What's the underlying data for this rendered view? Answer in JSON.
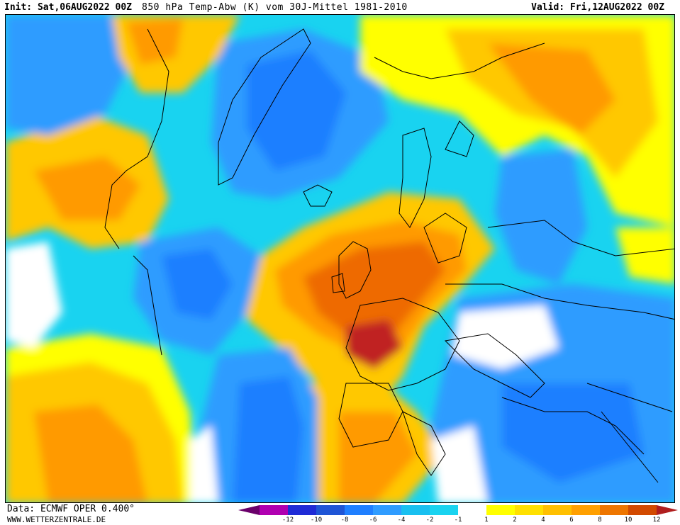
{
  "header": {
    "init": "Init: Sat,06AUG2022 00Z",
    "title": "850 hPa Temp-Abw (K) vom 30J-Mittel 1981-2010",
    "valid": "Valid: Fri,12AUG2022 00Z"
  },
  "map": {
    "field": "850 hPa temperature anomaly",
    "region": "North Atlantic / Europe",
    "palette": {
      "cold_strong": "#1f55d6",
      "cold": "#2f9cff",
      "cool": "#19d3f0",
      "neutral": "#ffffff",
      "warm_light": "#ffff00",
      "warm": "#ffc800",
      "warmer": "#ff9a00",
      "hot": "#ee6a00",
      "very_hot": "#c02020"
    }
  },
  "legend": {
    "colors": [
      "#6a006a",
      "#b000b0",
      "#1f2bd6",
      "#1f55d6",
      "#1f7fff",
      "#2f9cff",
      "#19c0f0",
      "#19d3f0",
      "#ffffff",
      "#ffff00",
      "#ffe000",
      "#ffc000",
      "#ffa000",
      "#ee7600",
      "#d24a00",
      "#b01e1e"
    ],
    "ticks": [
      "-12",
      "-10",
      "-8",
      "-6",
      "-4",
      "-2",
      "-1",
      "1",
      "2",
      "4",
      "6",
      "8",
      "10",
      "12"
    ]
  },
  "footer": {
    "data_source": "Data: ECMWF OPER 0.400°",
    "website": "WWW.WETTERZENTRALE.DE"
  }
}
